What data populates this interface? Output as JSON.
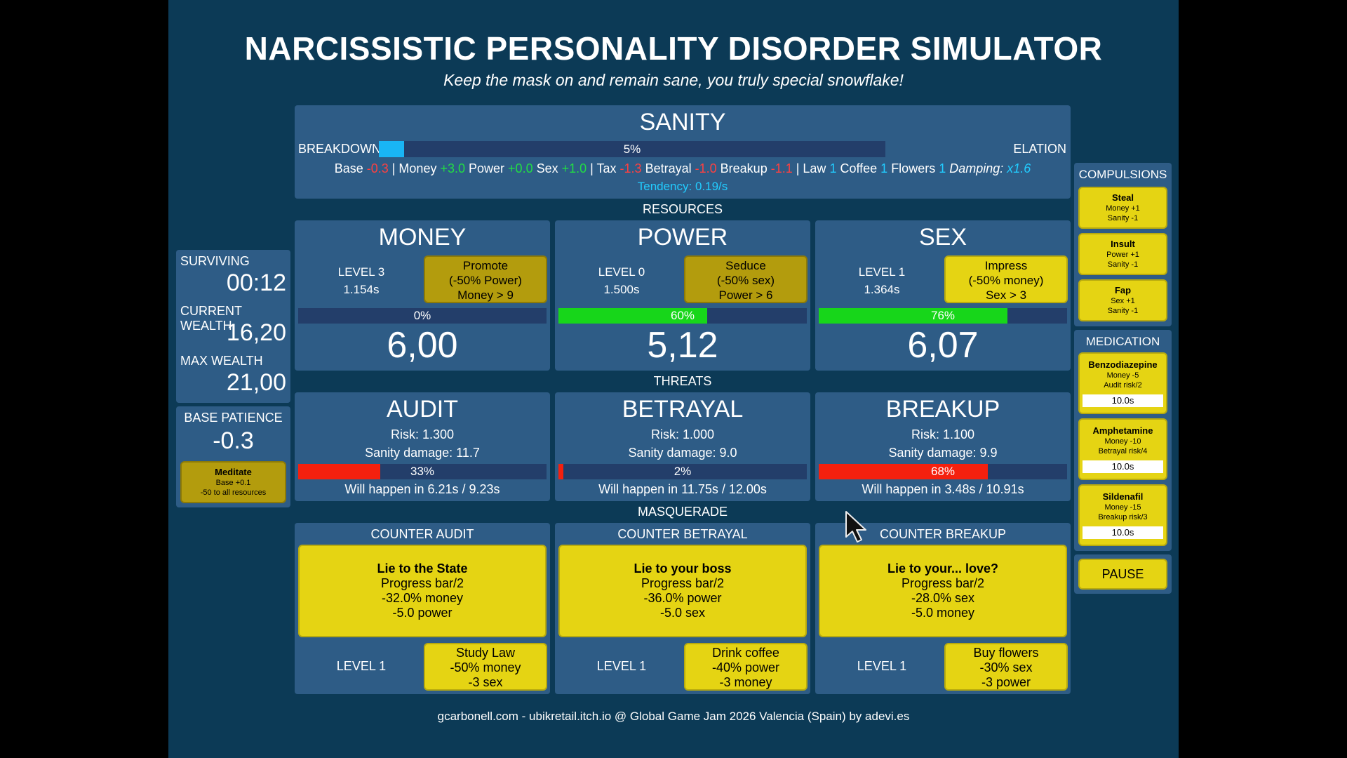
{
  "title": "NARCISSISTIC PERSONALITY DISORDER SIMULATOR",
  "subtitle": "Keep the mask on and remain sane, you truly special snowflake!",
  "sanity": {
    "title": "SANITY",
    "left_label": "BREAKDOWN",
    "right_label": "ELATION",
    "bar_text": "5%",
    "bar_fill": 5,
    "modifiers": [
      {
        "label": "Base ",
        "value": "-0.3",
        "color": "#ff4040"
      },
      {
        "label": " | Money ",
        "value": "+3.0",
        "color": "#22dd44"
      },
      {
        "label": " Power ",
        "value": "+0.0",
        "color": "#22dd44"
      },
      {
        "label": " Sex ",
        "value": "+1.0",
        "color": "#22dd44"
      },
      {
        "label": " | Tax ",
        "value": "-1.3",
        "color": "#ff4040"
      },
      {
        "label": " Betrayal ",
        "value": "-1.0",
        "color": "#ff4040"
      },
      {
        "label": " Breakup ",
        "value": "-1.1",
        "color": "#ff4040"
      },
      {
        "label": " | Law ",
        "value": "1",
        "color": "#22ccff"
      },
      {
        "label": " Coffee ",
        "value": "1",
        "color": "#22ccff"
      },
      {
        "label": " Flowers ",
        "value": "1",
        "color": "#22ccff"
      }
    ],
    "damping_label": "Damping:",
    "damping_value": "x1.6",
    "tendency": "Tendency: 0.19/s"
  },
  "sections": {
    "resources": "RESOURCES",
    "threats": "THREATS",
    "masquerade": "MASQUERADE"
  },
  "resources": [
    {
      "name": "MONEY",
      "level": "LEVEL 3",
      "time": "1.154s",
      "btn": [
        "Promote",
        "(-50% Power)",
        "Money > 9"
      ],
      "btn_style": "dim",
      "bar_text": "0%",
      "bar_fill": 0,
      "value": "6,00"
    },
    {
      "name": "POWER",
      "level": "LEVEL 0",
      "time": "1.500s",
      "btn": [
        "Seduce",
        "(-50% sex)",
        "Power > 6"
      ],
      "btn_style": "dim",
      "bar_text": "60%",
      "bar_fill": 60,
      "value": "5,12"
    },
    {
      "name": "SEX",
      "level": "LEVEL 1",
      "time": "1.364s",
      "btn": [
        "Impress",
        "(-50% money)",
        "Sex > 3"
      ],
      "btn_style": "bright",
      "bar_text": "76%",
      "bar_fill": 76,
      "value": "6,07"
    }
  ],
  "threats": [
    {
      "name": "AUDIT",
      "risk": "Risk: 1.300",
      "damage": "Sanity damage:  11.7",
      "bar_text": "33%",
      "bar_fill": 33,
      "eta": "Will happen in 6.21s / 9.23s"
    },
    {
      "name": "BETRAYAL",
      "risk": "Risk: 1.000",
      "damage": "Sanity damage:  9.0",
      "bar_text": "2%",
      "bar_fill": 2,
      "eta": "Will happen in 11.75s / 12.00s"
    },
    {
      "name": "BREAKUP",
      "risk": "Risk: 1.100",
      "damage": "Sanity damage:  9.9",
      "bar_text": "68%",
      "bar_fill": 68,
      "eta": "Will happen in 3.48s / 10.91s"
    }
  ],
  "masquerade": [
    {
      "header": "COUNTER AUDIT",
      "action_title": "Lie to the State",
      "action_lines": [
        "Progress bar/2",
        "-32.0% money",
        "-5.0 power"
      ],
      "level": "LEVEL 1",
      "upgrade": [
        "Study Law",
        "-50% money",
        "-3 sex"
      ]
    },
    {
      "header": "COUNTER BETRAYAL",
      "action_title": "Lie to your boss",
      "action_lines": [
        "Progress bar/2",
        "-36.0% power",
        "-5.0 sex"
      ],
      "level": "LEVEL 1",
      "upgrade": [
        "Drink coffee",
        "-40% power",
        "-3 money"
      ]
    },
    {
      "header": "COUNTER BREAKUP",
      "action_title": "Lie to your... love?",
      "action_lines": [
        "Progress bar/2",
        "-28.0% sex",
        "-5.0 money"
      ],
      "level": "LEVEL 1",
      "upgrade": [
        "Buy flowers",
        "-30% sex",
        "-3 power"
      ]
    }
  ],
  "stats": {
    "surviving_label": "SURVIVING",
    "surviving_value": "00:12",
    "wealth_label": "CURRENT WEALTH",
    "wealth_value": "16,20",
    "max_label": "MAX WEALTH",
    "max_value": "21,00"
  },
  "patience": {
    "label": "BASE PATIENCE",
    "value": "-0.3",
    "meditate_title": "Meditate",
    "meditate_lines": [
      "Base +0.1",
      "-50 to all resources"
    ]
  },
  "compulsions": {
    "title": "COMPULSIONS",
    "items": [
      {
        "title": "Steal",
        "lines": [
          "Money +1",
          "Sanity -1"
        ]
      },
      {
        "title": "Insult",
        "lines": [
          "Power +1",
          "Sanity -1"
        ]
      },
      {
        "title": "Fap",
        "lines": [
          "Sex +1",
          "Sanity -1"
        ]
      }
    ]
  },
  "medication": {
    "title": "MEDICATION",
    "items": [
      {
        "title": "Benzodiazepine",
        "lines": [
          "Money -5",
          "Audit risk/2"
        ],
        "timer": "10.0s"
      },
      {
        "title": "Amphetamine",
        "lines": [
          "Money -10",
          "Betrayal risk/4"
        ],
        "timer": "10.0s"
      },
      {
        "title": "Sildenafil",
        "lines": [
          "Money -15",
          "Breakup risk/3"
        ],
        "timer": "10.0s"
      }
    ]
  },
  "pause_label": "PAUSE",
  "footer": "gcarbonell.com - ubikretail.itch.io @ Global Game Jam 2026 Valencia (Spain) by adevi.es",
  "colors": {
    "background": "#0c3a56",
    "panel": "#2e5c86",
    "bar_track": "#233e6a",
    "sanity_fill": "#19b5f5",
    "resource_fill": "#17d61a",
    "threat_fill": "#f5200e",
    "button_yellow": "#e5d413",
    "button_dim": "#b39c0d"
  }
}
